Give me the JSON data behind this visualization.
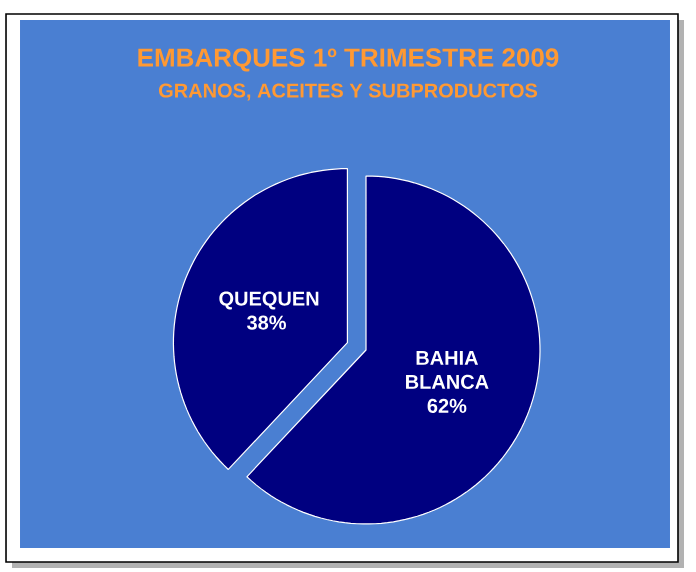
{
  "chart_data": {
    "type": "pie",
    "title": "EMBARQUES 1º TRIMESTRE 2009",
    "subtitle": "GRANOS, ACEITES Y SUBPRODUCTOS",
    "categories": [
      "BAHIA BLANCA",
      "QUEQUEN"
    ],
    "values": [
      62,
      38
    ],
    "colors": [
      "#000080",
      "#000080"
    ],
    "value_labels": [
      "62%",
      "38%"
    ]
  }
}
